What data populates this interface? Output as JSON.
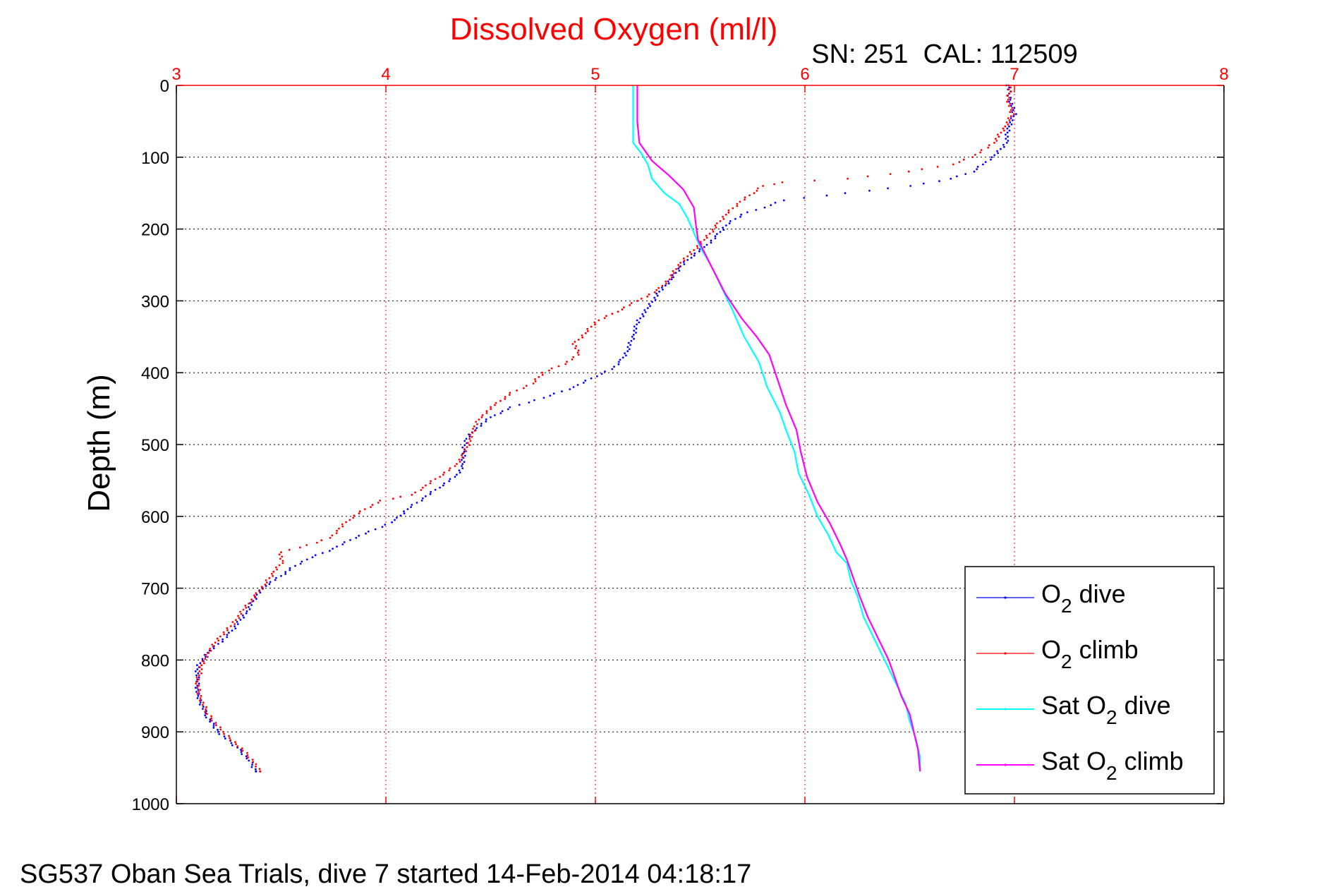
{
  "figure": {
    "title": "Dissolved Oxygen (ml/l)",
    "subtitle": "SN: 251  CAL: 112509",
    "footer": "SG537 Oban Sea Trials, dive 7 started 14-Feb-2014 04:18:17",
    "colors": {
      "title": "#ff0000",
      "top_axis": "#ff0000",
      "left_axis": "#000000",
      "grid": "#000000"
    }
  },
  "chart_data": {
    "type": "scatter",
    "title": "Dissolved Oxygen (ml/l)",
    "ylabel": "Depth (m)",
    "xlabel": "",
    "x_axis_position": "top",
    "y_reversed": true,
    "xlim": [
      3,
      8
    ],
    "ylim": [
      0,
      1000
    ],
    "xticks": [
      "3",
      "4",
      "5",
      "6",
      "7",
      "8"
    ],
    "yticks": [
      "0",
      "100",
      "200",
      "300",
      "400",
      "500",
      "600",
      "700",
      "800",
      "900",
      "1000"
    ],
    "grid": true,
    "legend_position": "bottom-right",
    "series": [
      {
        "name": "O2 dive",
        "label_parts": [
          "O",
          "2",
          " dive"
        ],
        "color": "#0000ff",
        "style": "dots",
        "points": [
          [
            6.97,
            0
          ],
          [
            6.98,
            20
          ],
          [
            7.0,
            40
          ],
          [
            6.97,
            60
          ],
          [
            6.96,
            80
          ],
          [
            6.9,
            100
          ],
          [
            6.85,
            110
          ],
          [
            6.8,
            120
          ],
          [
            6.7,
            130
          ],
          [
            6.5,
            140
          ],
          [
            6.2,
            150
          ],
          [
            5.9,
            160
          ],
          [
            5.8,
            170
          ],
          [
            5.7,
            180
          ],
          [
            5.62,
            195
          ],
          [
            5.58,
            210
          ],
          [
            5.52,
            225
          ],
          [
            5.45,
            240
          ],
          [
            5.4,
            255
          ],
          [
            5.36,
            270
          ],
          [
            5.3,
            290
          ],
          [
            5.25,
            310
          ],
          [
            5.2,
            330
          ],
          [
            5.18,
            350
          ],
          [
            5.15,
            370
          ],
          [
            5.12,
            385
          ],
          [
            5.08,
            395
          ],
          [
            5.0,
            405
          ],
          [
            4.9,
            420
          ],
          [
            4.75,
            435
          ],
          [
            4.6,
            448
          ],
          [
            4.5,
            462
          ],
          [
            4.42,
            480
          ],
          [
            4.38,
            495
          ],
          [
            4.37,
            510
          ],
          [
            4.37,
            530
          ],
          [
            4.33,
            545
          ],
          [
            4.25,
            560
          ],
          [
            4.18,
            575
          ],
          [
            4.1,
            590
          ],
          [
            4.05,
            605
          ],
          [
            3.95,
            618
          ],
          [
            3.85,
            630
          ],
          [
            3.75,
            645
          ],
          [
            3.62,
            660
          ],
          [
            3.55,
            672
          ],
          [
            3.5,
            683
          ],
          [
            3.42,
            697
          ],
          [
            3.38,
            712
          ],
          [
            3.33,
            735
          ],
          [
            3.25,
            765
          ],
          [
            3.15,
            790
          ],
          [
            3.1,
            810
          ],
          [
            3.1,
            830
          ],
          [
            3.1,
            850
          ],
          [
            3.15,
            880
          ],
          [
            3.2,
            900
          ],
          [
            3.3,
            925
          ],
          [
            3.35,
            940
          ],
          [
            3.38,
            955
          ]
        ]
      },
      {
        "name": "O2 climb",
        "label_parts": [
          "O",
          "2",
          " climb"
        ],
        "color": "#ff0000",
        "style": "dots",
        "points": [
          [
            6.98,
            0
          ],
          [
            6.97,
            20
          ],
          [
            6.99,
            40
          ],
          [
            6.95,
            60
          ],
          [
            6.9,
            80
          ],
          [
            6.85,
            90
          ],
          [
            6.8,
            100
          ],
          [
            6.7,
            110
          ],
          [
            6.5,
            120
          ],
          [
            6.2,
            130
          ],
          [
            5.9,
            135
          ],
          [
            5.8,
            140
          ],
          [
            5.75,
            150
          ],
          [
            5.68,
            165
          ],
          [
            5.62,
            180
          ],
          [
            5.58,
            195
          ],
          [
            5.52,
            215
          ],
          [
            5.45,
            235
          ],
          [
            5.4,
            250
          ],
          [
            5.35,
            270
          ],
          [
            5.3,
            285
          ],
          [
            5.2,
            300
          ],
          [
            5.1,
            315
          ],
          [
            5.0,
            330
          ],
          [
            4.95,
            345
          ],
          [
            4.9,
            360
          ],
          [
            4.92,
            375
          ],
          [
            4.85,
            388
          ],
          [
            4.75,
            400
          ],
          [
            4.7,
            415
          ],
          [
            4.6,
            428
          ],
          [
            4.52,
            445
          ],
          [
            4.45,
            462
          ],
          [
            4.42,
            478
          ],
          [
            4.4,
            495
          ],
          [
            4.37,
            515
          ],
          [
            4.33,
            530
          ],
          [
            4.25,
            545
          ],
          [
            4.18,
            560
          ],
          [
            4.12,
            570
          ],
          [
            3.98,
            578
          ],
          [
            3.9,
            590
          ],
          [
            3.82,
            605
          ],
          [
            3.77,
            620
          ],
          [
            3.73,
            630
          ],
          [
            3.63,
            640
          ],
          [
            3.5,
            650
          ],
          [
            3.5,
            665
          ],
          [
            3.46,
            680
          ],
          [
            3.42,
            695
          ],
          [
            3.38,
            710
          ],
          [
            3.32,
            730
          ],
          [
            3.27,
            750
          ],
          [
            3.2,
            770
          ],
          [
            3.15,
            790
          ],
          [
            3.12,
            810
          ],
          [
            3.1,
            830
          ],
          [
            3.11,
            850
          ],
          [
            3.15,
            875
          ],
          [
            3.22,
            900
          ],
          [
            3.3,
            920
          ],
          [
            3.38,
            945
          ],
          [
            3.4,
            955
          ]
        ]
      },
      {
        "name": "Sat O2 dive",
        "label_parts": [
          "Sat O",
          "2",
          " dive"
        ],
        "color": "#00ffff",
        "style": "line",
        "points": [
          [
            5.18,
            0
          ],
          [
            5.18,
            50
          ],
          [
            5.18,
            80
          ],
          [
            5.22,
            95
          ],
          [
            5.25,
            110
          ],
          [
            5.27,
            130
          ],
          [
            5.33,
            150
          ],
          [
            5.4,
            165
          ],
          [
            5.44,
            185
          ],
          [
            5.47,
            205
          ],
          [
            5.5,
            225
          ],
          [
            5.55,
            250
          ],
          [
            5.6,
            280
          ],
          [
            5.65,
            310
          ],
          [
            5.71,
            350
          ],
          [
            5.78,
            385
          ],
          [
            5.82,
            420
          ],
          [
            5.88,
            455
          ],
          [
            5.91,
            480
          ],
          [
            5.95,
            510
          ],
          [
            5.97,
            540
          ],
          [
            6.02,
            570
          ],
          [
            6.06,
            600
          ],
          [
            6.11,
            625
          ],
          [
            6.15,
            650
          ],
          [
            6.2,
            665
          ],
          [
            6.22,
            690
          ],
          [
            6.25,
            710
          ],
          [
            6.28,
            740
          ],
          [
            6.33,
            770
          ],
          [
            6.38,
            800
          ],
          [
            6.43,
            830
          ],
          [
            6.48,
            860
          ],
          [
            6.5,
            885
          ],
          [
            6.53,
            910
          ],
          [
            6.55,
            935
          ],
          [
            6.55,
            955
          ]
        ]
      },
      {
        "name": "Sat O2 climb",
        "label_parts": [
          "Sat O",
          "2",
          " climb"
        ],
        "color": "#ff00ff",
        "style": "line",
        "points": [
          [
            5.2,
            0
          ],
          [
            5.2,
            50
          ],
          [
            5.21,
            80
          ],
          [
            5.27,
            105
          ],
          [
            5.35,
            125
          ],
          [
            5.42,
            145
          ],
          [
            5.47,
            170
          ],
          [
            5.48,
            195
          ],
          [
            5.49,
            215
          ],
          [
            5.55,
            250
          ],
          [
            5.62,
            290
          ],
          [
            5.7,
            325
          ],
          [
            5.77,
            350
          ],
          [
            5.83,
            375
          ],
          [
            5.87,
            410
          ],
          [
            5.91,
            445
          ],
          [
            5.96,
            480
          ],
          [
            5.98,
            510
          ],
          [
            6.01,
            545
          ],
          [
            6.06,
            580
          ],
          [
            6.12,
            610
          ],
          [
            6.17,
            640
          ],
          [
            6.2,
            660
          ],
          [
            6.23,
            685
          ],
          [
            6.26,
            710
          ],
          [
            6.3,
            740
          ],
          [
            6.35,
            770
          ],
          [
            6.4,
            800
          ],
          [
            6.43,
            825
          ],
          [
            6.46,
            850
          ],
          [
            6.5,
            875
          ],
          [
            6.52,
            900
          ],
          [
            6.54,
            925
          ],
          [
            6.55,
            955
          ]
        ]
      }
    ]
  }
}
